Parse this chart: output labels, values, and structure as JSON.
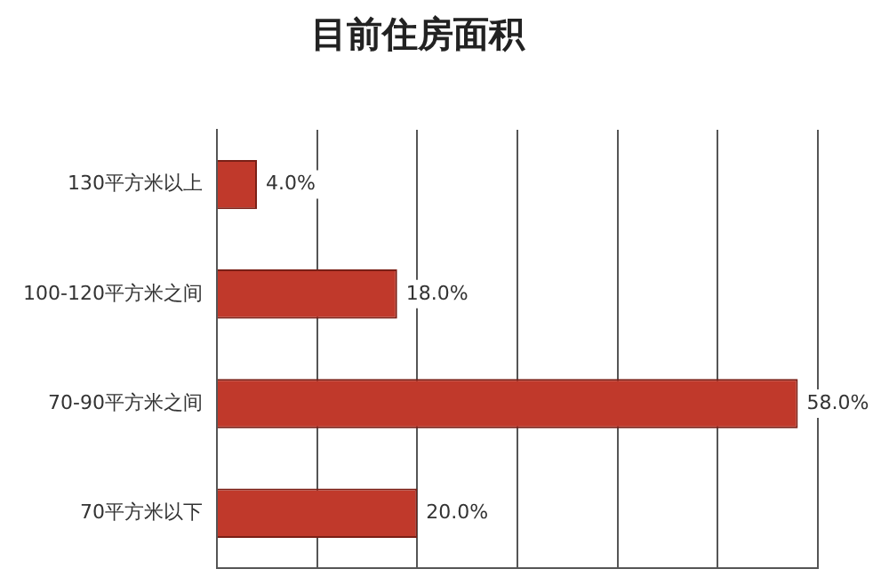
{
  "chart_data": {
    "type": "bar",
    "orientation": "horizontal",
    "title": "目前住房面积",
    "categories": [
      "130平方米以上",
      "100-120平方米之间",
      "70-90平方米之间",
      "70平方米以下"
    ],
    "values": [
      4,
      18,
      58,
      20
    ],
    "color": "#c0392b",
    "xlim": [
      0,
      60
    ],
    "xticks": [
      {
        "value": 0,
        "label": null
      },
      {
        "value": 10,
        "label": null
      },
      {
        "value": 20,
        "label": null
      },
      {
        "value": 30,
        "label": null
      },
      {
        "value": 40,
        "label": null
      },
      {
        "value": 50,
        "label": null
      },
      {
        "value": 60,
        "label": null
      }
    ],
    "value_labels": [
      "4.0%",
      "18.0%",
      "58.0%",
      "20.0%"
    ],
    "grid": "x",
    "tick_labels": "y",
    "legend": false
  }
}
